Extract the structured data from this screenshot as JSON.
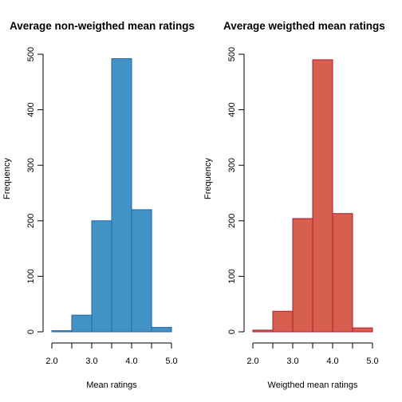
{
  "chart_data": [
    {
      "type": "bar",
      "title": "Average non-weigthed mean ratings",
      "xlabel": "Mean ratings",
      "ylabel": "Frequency",
      "bin_edges": [
        2.0,
        2.5,
        3.0,
        3.5,
        4.0,
        4.5,
        5.0
      ],
      "values": [
        2,
        30,
        200,
        492,
        220,
        8
      ],
      "x_ticks": [
        "2.0",
        "3.0",
        "4.0",
        "5.0"
      ],
      "x_tick_positions": [
        2.0,
        2.5,
        3.0,
        3.5,
        4.0,
        4.5,
        5.0
      ],
      "y_ticks": [
        "0",
        "100",
        "200",
        "300",
        "400",
        "500"
      ],
      "xlim": [
        2.0,
        5.0
      ],
      "ylim": [
        0,
        500
      ],
      "fill_color": "#4292c6",
      "edge_color": "#2166ac",
      "grid": false,
      "legend": "none"
    },
    {
      "type": "bar",
      "title": "Average weigthed mean ratings",
      "xlabel": "Weigthed mean ratings",
      "ylabel": "Frequency",
      "bin_edges": [
        2.0,
        2.5,
        3.0,
        3.5,
        4.0,
        4.5,
        5.0
      ],
      "values": [
        3,
        37,
        204,
        490,
        213,
        7
      ],
      "x_ticks": [
        "2.0",
        "3.0",
        "4.0",
        "5.0"
      ],
      "x_tick_positions": [
        2.0,
        2.5,
        3.0,
        3.5,
        4.0,
        4.5,
        5.0
      ],
      "y_ticks": [
        "0",
        "100",
        "200",
        "300",
        "400",
        "500"
      ],
      "xlim": [
        2.0,
        5.0
      ],
      "ylim": [
        0,
        500
      ],
      "fill_color": "#d6604d",
      "edge_color": "#b2182b",
      "grid": false,
      "legend": "none"
    }
  ]
}
